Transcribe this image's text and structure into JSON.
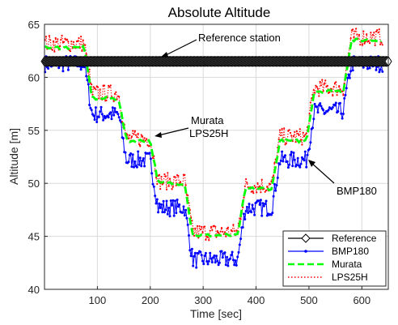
{
  "chart_data": {
    "type": "line",
    "title": "Absolute Altitude",
    "xlabel": "Time [sec]",
    "ylabel": "Altitude [m]",
    "xlim": [
      0,
      650
    ],
    "ylim": [
      40,
      65
    ],
    "xticks": [
      100,
      200,
      300,
      400,
      500,
      600
    ],
    "yticks": [
      40,
      45,
      50,
      55,
      60,
      65
    ],
    "grid": true,
    "legend_position": "bottom-right",
    "series": [
      {
        "name": "Reference",
        "color": "#000000",
        "style": "solid-diamond",
        "points": [
          [
            0,
            61.5
          ],
          [
            650,
            61.5
          ]
        ]
      },
      {
        "name": "BMP180",
        "color": "#0000ff",
        "style": "solid-dot",
        "points": [
          [
            0,
            61.3
          ],
          [
            75,
            61.3
          ],
          [
            90,
            56.5
          ],
          [
            140,
            56.5
          ],
          [
            155,
            52.2
          ],
          [
            200,
            52.2
          ],
          [
            215,
            47.7
          ],
          [
            265,
            47.7
          ],
          [
            280,
            42.8
          ],
          [
            365,
            42.8
          ],
          [
            380,
            47.7
          ],
          [
            430,
            47.7
          ],
          [
            445,
            52.2
          ],
          [
            495,
            52.2
          ],
          [
            510,
            56.8
          ],
          [
            565,
            56.8
          ],
          [
            580,
            61.3
          ],
          [
            640,
            61.3
          ]
        ]
      },
      {
        "name": "Murata",
        "color": "#00ff00",
        "style": "dashed",
        "points": [
          [
            0,
            62.8
          ],
          [
            75,
            62.8
          ],
          [
            90,
            58.0
          ],
          [
            140,
            58.0
          ],
          [
            155,
            54.0
          ],
          [
            200,
            54.0
          ],
          [
            215,
            50.0
          ],
          [
            265,
            50.0
          ],
          [
            280,
            45.1
          ],
          [
            365,
            45.1
          ],
          [
            380,
            49.5
          ],
          [
            430,
            49.5
          ],
          [
            445,
            54.0
          ],
          [
            495,
            54.0
          ],
          [
            510,
            58.7
          ],
          [
            565,
            58.7
          ],
          [
            580,
            63.5
          ],
          [
            640,
            63.5
          ]
        ]
      },
      {
        "name": "LPS25H",
        "color": "#ff0000",
        "style": "dotted",
        "points": [
          [
            0,
            63.2
          ],
          [
            75,
            63.2
          ],
          [
            90,
            58.5
          ],
          [
            140,
            58.5
          ],
          [
            155,
            54.2
          ],
          [
            200,
            54.2
          ],
          [
            215,
            50.2
          ],
          [
            265,
            50.2
          ],
          [
            280,
            45.4
          ],
          [
            365,
            45.4
          ],
          [
            380,
            49.8
          ],
          [
            430,
            49.8
          ],
          [
            445,
            54.4
          ],
          [
            495,
            54.4
          ],
          [
            510,
            59.0
          ],
          [
            565,
            59.0
          ],
          [
            580,
            63.8
          ],
          [
            640,
            63.8
          ]
        ]
      }
    ],
    "annotations": [
      {
        "text": "Reference station",
        "points_to": [
          195,
          61.5
        ]
      },
      {
        "text": "Murata",
        "points_to": [
          195,
          54.2
        ]
      },
      {
        "text": "LPS25H",
        "points_to": [
          195,
          54.2
        ]
      },
      {
        "text": "BMP180",
        "points_to": [
          500,
          52.2
        ]
      }
    ]
  }
}
